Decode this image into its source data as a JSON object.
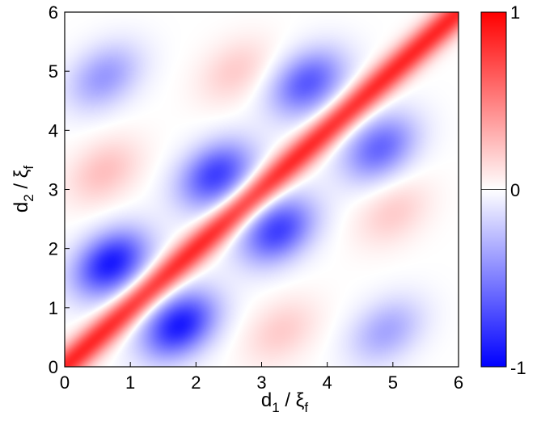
{
  "chart_data": {
    "type": "heatmap",
    "title": "",
    "xlabel": {
      "main": "d",
      "sub": "1",
      "sep": " / ξ",
      "sub2": "f"
    },
    "ylabel": {
      "main": "d",
      "sub": "2",
      "sep": " / ξ",
      "sub2": "f"
    },
    "xlim": [
      0,
      6
    ],
    "ylim": [
      0,
      6
    ],
    "x_ticks": [
      "0",
      "1",
      "2",
      "3",
      "4",
      "5",
      "6"
    ],
    "y_ticks": [
      "0",
      "1",
      "2",
      "3",
      "4",
      "5",
      "6"
    ],
    "grid": false,
    "colorbar": {
      "min": -1,
      "max": 1,
      "ticks": [
        "1",
        "0",
        "-1"
      ],
      "colors": {
        "low": "#0000ff",
        "mid": "#ffffff",
        "high": "#ff0000"
      }
    },
    "features": {
      "diagonal_ridge": {
        "value": 0.85,
        "description_units": "value along d1 = d2"
      },
      "off_diagonal_extrema": [
        {
          "x": 0.7,
          "y": 1.75,
          "value": -0.9
        },
        {
          "x": 1.75,
          "y": 0.7,
          "value": -0.9
        },
        {
          "x": 2.3,
          "y": 3.25,
          "value": -0.75
        },
        {
          "x": 3.25,
          "y": 2.3,
          "value": -0.75
        },
        {
          "x": 3.7,
          "y": 4.8,
          "value": -0.65
        },
        {
          "x": 4.8,
          "y": 3.7,
          "value": -0.6
        },
        {
          "x": 0.6,
          "y": 4.9,
          "value": -0.4
        },
        {
          "x": 4.9,
          "y": 0.6,
          "value": -0.35
        },
        {
          "x": 0.6,
          "y": 3.3,
          "value": 0.25
        },
        {
          "x": 3.3,
          "y": 0.6,
          "value": 0.2
        },
        {
          "x": 2.6,
          "y": 5.0,
          "value": 0.2
        },
        {
          "x": 5.0,
          "y": 2.6,
          "value": 0.2
        }
      ]
    }
  }
}
